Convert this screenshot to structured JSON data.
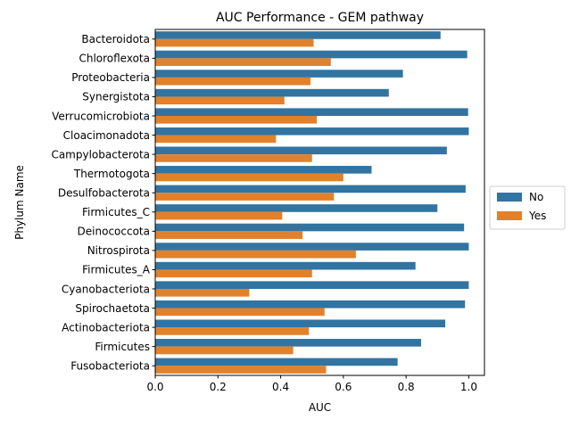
{
  "chart_data": {
    "type": "bar",
    "orientation": "horizontal",
    "title": "AUC Performance - GEM pathway",
    "xlabel": "AUC",
    "ylabel": "Phylum Name",
    "xlim": [
      0,
      1.05
    ],
    "xticks": [
      "0.0",
      "0.2",
      "0.4",
      "0.6",
      "0.8",
      "1.0"
    ],
    "grid": false,
    "legend_position": "right",
    "categories": [
      "Bacteroidota",
      "Chloroflexota",
      "Proteobacteria",
      "Synergistota",
      "Verrucomicrobiota",
      "Cloacimonadota",
      "Campylobacterota",
      "Thermotogota",
      "Desulfobacterota",
      "Firmicutes_C",
      "Deinococcota",
      "Nitrospirota",
      "Firmicutes_A",
      "Cyanobacteriota",
      "Spirochaetota",
      "Actinobacteriota",
      "Firmicutes",
      "Fusobacteriota"
    ],
    "series": [
      {
        "name": "No",
        "color": "#3274a1",
        "values": [
          0.91,
          0.995,
          0.79,
          0.745,
          0.998,
          1.0,
          0.93,
          0.69,
          0.99,
          0.9,
          0.985,
          1.0,
          0.83,
          1.0,
          0.988,
          0.925,
          0.848,
          0.773
        ]
      },
      {
        "name": "Yes",
        "color": "#e1812c",
        "values": [
          0.505,
          0.56,
          0.495,
          0.412,
          0.515,
          0.385,
          0.5,
          0.6,
          0.57,
          0.405,
          0.47,
          0.64,
          0.5,
          0.3,
          0.54,
          0.49,
          0.44,
          0.545
        ]
      }
    ]
  }
}
